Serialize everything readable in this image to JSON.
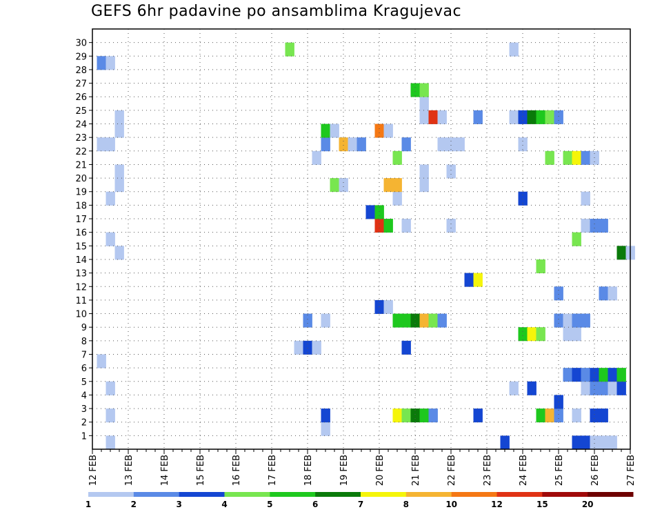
{
  "chart_data": {
    "type": "heatmap",
    "title": "GEFS 6hr padavine po ansamblima Kragujevac",
    "xlabel": "",
    "ylabel": "",
    "x_ticks": [
      "12 FEB",
      "13 FEB",
      "14 FEB",
      "15 FEB",
      "16 FEB",
      "17 FEB",
      "18 FEB",
      "19 FEB",
      "20 FEB",
      "21 FEB",
      "22 FEB",
      "23 FEB",
      "24 FEB",
      "25 FEB",
      "26 FEB",
      "27 FEB"
    ],
    "y_ticks": [
      "1",
      "2",
      "3",
      "4",
      "5",
      "6",
      "7",
      "8",
      "9",
      "10",
      "11",
      "12",
      "13",
      "14",
      "15",
      "16",
      "17",
      "18",
      "19",
      "20",
      "21",
      "22",
      "23",
      "24",
      "25",
      "26",
      "27",
      "28",
      "29",
      "30"
    ],
    "xlim": [
      "12 FEB 00Z",
      "27 FEB 00Z"
    ],
    "ylim": [
      0,
      30
    ],
    "time_step_hours": 6,
    "grid": true,
    "colorbar": {
      "labels": [
        "1",
        "2",
        "3",
        "4",
        "5",
        "6",
        "7",
        "8",
        "10",
        "12",
        "15",
        "20"
      ],
      "colors": [
        "#b4c8f0",
        "#5a8ae6",
        "#1446d2",
        "#78e650",
        "#1ec81e",
        "#0a7a0a",
        "#f5f50a",
        "#f5b432",
        "#f57814",
        "#e03214",
        "#a00a0a",
        "#6e0000"
      ],
      "placement": "bottom"
    },
    "cells": [
      {
        "member": 0,
        "time": "12 FEB 12Z",
        "cls": 1
      },
      {
        "member": 0,
        "time": "23 FEB 12Z",
        "cls": 3
      },
      {
        "member": 0,
        "time": "25 FEB 12Z",
        "cls": 3
      },
      {
        "member": 0,
        "time": "25 FEB 18Z",
        "cls": 3
      },
      {
        "member": 0,
        "time": "26 FEB 00Z",
        "cls": 1
      },
      {
        "member": 0,
        "time": "26 FEB 06Z",
        "cls": 1
      },
      {
        "member": 0,
        "time": "26 FEB 12Z",
        "cls": 1
      },
      {
        "member": 1,
        "time": "18 FEB 12Z",
        "cls": 1
      },
      {
        "member": 2,
        "time": "12 FEB 12Z",
        "cls": 1
      },
      {
        "member": 2,
        "time": "18 FEB 12Z",
        "cls": 3
      },
      {
        "member": 2,
        "time": "20 FEB 12Z",
        "cls": 7
      },
      {
        "member": 2,
        "time": "20 FEB 18Z",
        "cls": 4
      },
      {
        "member": 2,
        "time": "21 FEB 00Z",
        "cls": 6
      },
      {
        "member": 2,
        "time": "21 FEB 06Z",
        "cls": 5
      },
      {
        "member": 2,
        "time": "21 FEB 12Z",
        "cls": 2
      },
      {
        "member": 2,
        "time": "22 FEB 18Z",
        "cls": 3
      },
      {
        "member": 2,
        "time": "24 FEB 12Z",
        "cls": 5
      },
      {
        "member": 2,
        "time": "24 FEB 18Z",
        "cls": 8
      },
      {
        "member": 2,
        "time": "25 FEB 00Z",
        "cls": 2
      },
      {
        "member": 2,
        "time": "25 FEB 12Z",
        "cls": 1
      },
      {
        "member": 2,
        "time": "26 FEB 00Z",
        "cls": 3
      },
      {
        "member": 2,
        "time": "26 FEB 06Z",
        "cls": 3
      },
      {
        "member": 3,
        "time": "25 FEB 00Z",
        "cls": 3
      },
      {
        "member": 4,
        "time": "12 FEB 12Z",
        "cls": 1
      },
      {
        "member": 4,
        "time": "23 FEB 18Z",
        "cls": 1
      },
      {
        "member": 4,
        "time": "24 FEB 06Z",
        "cls": 3
      },
      {
        "member": 4,
        "time": "25 FEB 18Z",
        "cls": 1
      },
      {
        "member": 4,
        "time": "26 FEB 00Z",
        "cls": 2
      },
      {
        "member": 4,
        "time": "26 FEB 06Z",
        "cls": 2
      },
      {
        "member": 4,
        "time": "26 FEB 12Z",
        "cls": 1
      },
      {
        "member": 4,
        "time": "26 FEB 18Z",
        "cls": 3
      },
      {
        "member": 5,
        "time": "25 FEB 06Z",
        "cls": 2
      },
      {
        "member": 5,
        "time": "25 FEB 12Z",
        "cls": 3
      },
      {
        "member": 5,
        "time": "25 FEB 18Z",
        "cls": 2
      },
      {
        "member": 5,
        "time": "26 FEB 00Z",
        "cls": 3
      },
      {
        "member": 5,
        "time": "26 FEB 06Z",
        "cls": 5
      },
      {
        "member": 5,
        "time": "26 FEB 12Z",
        "cls": 3
      },
      {
        "member": 5,
        "time": "26 FEB 18Z",
        "cls": 5
      },
      {
        "member": 6,
        "time": "12 FEB 06Z",
        "cls": 1
      },
      {
        "member": 7,
        "time": "17 FEB 18Z",
        "cls": 1
      },
      {
        "member": 7,
        "time": "18 FEB 00Z",
        "cls": 3
      },
      {
        "member": 7,
        "time": "18 FEB 06Z",
        "cls": 1
      },
      {
        "member": 7,
        "time": "20 FEB 18Z",
        "cls": 3
      },
      {
        "member": 8,
        "time": "24 FEB 00Z",
        "cls": 5
      },
      {
        "member": 8,
        "time": "24 FEB 06Z",
        "cls": 7
      },
      {
        "member": 8,
        "time": "24 FEB 12Z",
        "cls": 4
      },
      {
        "member": 8,
        "time": "25 FEB 06Z",
        "cls": 1
      },
      {
        "member": 8,
        "time": "25 FEB 12Z",
        "cls": 1
      },
      {
        "member": 9,
        "time": "18 FEB 00Z",
        "cls": 2
      },
      {
        "member": 9,
        "time": "18 FEB 12Z",
        "cls": 1
      },
      {
        "member": 9,
        "time": "20 FEB 12Z",
        "cls": 5
      },
      {
        "member": 9,
        "time": "20 FEB 18Z",
        "cls": 5
      },
      {
        "member": 9,
        "time": "21 FEB 00Z",
        "cls": 6
      },
      {
        "member": 9,
        "time": "21 FEB 06Z",
        "cls": 8
      },
      {
        "member": 9,
        "time": "21 FEB 12Z",
        "cls": 4
      },
      {
        "member": 9,
        "time": "21 FEB 18Z",
        "cls": 2
      },
      {
        "member": 9,
        "time": "25 FEB 00Z",
        "cls": 2
      },
      {
        "member": 9,
        "time": "25 FEB 06Z",
        "cls": 1
      },
      {
        "member": 9,
        "time": "25 FEB 12Z",
        "cls": 2
      },
      {
        "member": 9,
        "time": "25 FEB 18Z",
        "cls": 2
      },
      {
        "member": 10,
        "time": "20 FEB 00Z",
        "cls": 3
      },
      {
        "member": 10,
        "time": "20 FEB 06Z",
        "cls": 1
      },
      {
        "member": 11,
        "time": "25 FEB 00Z",
        "cls": 2
      },
      {
        "member": 11,
        "time": "26 FEB 06Z",
        "cls": 2
      },
      {
        "member": 11,
        "time": "26 FEB 12Z",
        "cls": 1
      },
      {
        "member": 12,
        "time": "22 FEB 12Z",
        "cls": 3
      },
      {
        "member": 12,
        "time": "22 FEB 18Z",
        "cls": 7
      },
      {
        "member": 13,
        "time": "24 FEB 12Z",
        "cls": 4
      },
      {
        "member": 14,
        "time": "12 FEB 18Z",
        "cls": 1
      },
      {
        "member": 14,
        "time": "26 FEB 18Z",
        "cls": 6
      },
      {
        "member": 14,
        "time": "27 FEB 00Z",
        "cls": 1
      },
      {
        "member": 15,
        "time": "12 FEB 12Z",
        "cls": 1
      },
      {
        "member": 15,
        "time": "25 FEB 12Z",
        "cls": 4
      },
      {
        "member": 16,
        "time": "20 FEB 00Z",
        "cls": 10
      },
      {
        "member": 16,
        "time": "20 FEB 06Z",
        "cls": 5
      },
      {
        "member": 16,
        "time": "20 FEB 18Z",
        "cls": 1
      },
      {
        "member": 16,
        "time": "22 FEB 00Z",
        "cls": 1
      },
      {
        "member": 16,
        "time": "25 FEB 18Z",
        "cls": 1
      },
      {
        "member": 16,
        "time": "26 FEB 00Z",
        "cls": 2
      },
      {
        "member": 16,
        "time": "26 FEB 06Z",
        "cls": 2
      },
      {
        "member": 17,
        "time": "19 FEB 18Z",
        "cls": 3
      },
      {
        "member": 17,
        "time": "20 FEB 00Z",
        "cls": 5
      },
      {
        "member": 18,
        "time": "12 FEB 12Z",
        "cls": 1
      },
      {
        "member": 18,
        "time": "20 FEB 12Z",
        "cls": 1
      },
      {
        "member": 18,
        "time": "24 FEB 00Z",
        "cls": 3
      },
      {
        "member": 18,
        "time": "25 FEB 18Z",
        "cls": 1
      },
      {
        "member": 19,
        "time": "12 FEB 18Z",
        "cls": 1
      },
      {
        "member": 19,
        "time": "18 FEB 18Z",
        "cls": 4
      },
      {
        "member": 19,
        "time": "19 FEB 00Z",
        "cls": 1
      },
      {
        "member": 19,
        "time": "20 FEB 06Z",
        "cls": 8
      },
      {
        "member": 19,
        "time": "20 FEB 12Z",
        "cls": 8
      },
      {
        "member": 19,
        "time": "21 FEB 06Z",
        "cls": 1
      },
      {
        "member": 20,
        "time": "12 FEB 18Z",
        "cls": 1
      },
      {
        "member": 20,
        "time": "21 FEB 06Z",
        "cls": 1
      },
      {
        "member": 20,
        "time": "22 FEB 00Z",
        "cls": 1
      },
      {
        "member": 21,
        "time": "18 FEB 06Z",
        "cls": 1
      },
      {
        "member": 21,
        "time": "20 FEB 12Z",
        "cls": 4
      },
      {
        "member": 21,
        "time": "24 FEB 18Z",
        "cls": 4
      },
      {
        "member": 21,
        "time": "25 FEB 06Z",
        "cls": 4
      },
      {
        "member": 21,
        "time": "25 FEB 12Z",
        "cls": 7
      },
      {
        "member": 21,
        "time": "25 FEB 18Z",
        "cls": 2
      },
      {
        "member": 21,
        "time": "26 FEB 00Z",
        "cls": 1
      },
      {
        "member": 22,
        "time": "12 FEB 06Z",
        "cls": 1
      },
      {
        "member": 22,
        "time": "12 FEB 12Z",
        "cls": 1
      },
      {
        "member": 22,
        "time": "18 FEB 12Z",
        "cls": 2
      },
      {
        "member": 22,
        "time": "19 FEB 00Z",
        "cls": 8
      },
      {
        "member": 22,
        "time": "19 FEB 06Z",
        "cls": 1
      },
      {
        "member": 22,
        "time": "19 FEB 12Z",
        "cls": 2
      },
      {
        "member": 22,
        "time": "20 FEB 18Z",
        "cls": 2
      },
      {
        "member": 22,
        "time": "21 FEB 18Z",
        "cls": 1
      },
      {
        "member": 22,
        "time": "22 FEB 00Z",
        "cls": 1
      },
      {
        "member": 22,
        "time": "22 FEB 06Z",
        "cls": 1
      },
      {
        "member": 22,
        "time": "24 FEB 00Z",
        "cls": 1
      },
      {
        "member": 23,
        "time": "12 FEB 18Z",
        "cls": 1
      },
      {
        "member": 23,
        "time": "18 FEB 12Z",
        "cls": 5
      },
      {
        "member": 23,
        "time": "18 FEB 18Z",
        "cls": 1
      },
      {
        "member": 23,
        "time": "20 FEB 00Z",
        "cls": 9
      },
      {
        "member": 23,
        "time": "20 FEB 06Z",
        "cls": 1
      },
      {
        "member": 24,
        "time": "12 FEB 18Z",
        "cls": 1
      },
      {
        "member": 24,
        "time": "21 FEB 06Z",
        "cls": 1
      },
      {
        "member": 24,
        "time": "21 FEB 12Z",
        "cls": 10
      },
      {
        "member": 24,
        "time": "21 FEB 18Z",
        "cls": 1
      },
      {
        "member": 24,
        "time": "22 FEB 18Z",
        "cls": 2
      },
      {
        "member": 24,
        "time": "23 FEB 18Z",
        "cls": 1
      },
      {
        "member": 24,
        "time": "24 FEB 00Z",
        "cls": 3
      },
      {
        "member": 24,
        "time": "24 FEB 06Z",
        "cls": 6
      },
      {
        "member": 24,
        "time": "24 FEB 12Z",
        "cls": 5
      },
      {
        "member": 24,
        "time": "24 FEB 18Z",
        "cls": 4
      },
      {
        "member": 24,
        "time": "25 FEB 00Z",
        "cls": 2
      },
      {
        "member": 25,
        "time": "21 FEB 06Z",
        "cls": 1
      },
      {
        "member": 26,
        "time": "21 FEB 00Z",
        "cls": 5
      },
      {
        "member": 26,
        "time": "21 FEB 06Z",
        "cls": 4
      },
      {
        "member": 28,
        "time": "12 FEB 06Z",
        "cls": 2
      },
      {
        "member": 28,
        "time": "12 FEB 12Z",
        "cls": 1
      },
      {
        "member": 29,
        "time": "17 FEB 12Z",
        "cls": 4
      },
      {
        "member": 29,
        "time": "23 FEB 18Z",
        "cls": 1
      }
    ]
  }
}
